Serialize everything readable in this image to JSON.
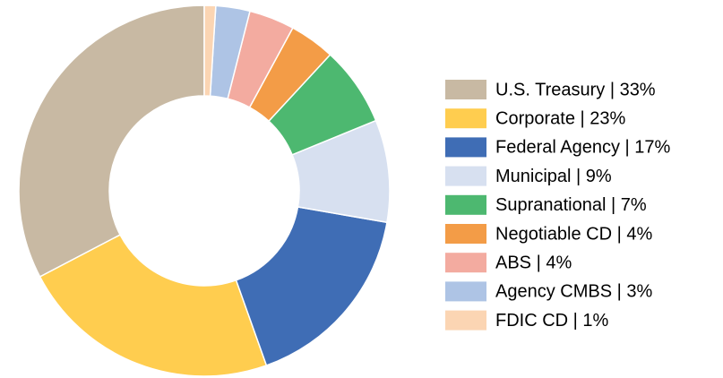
{
  "chart_data": {
    "type": "donut",
    "categories": [
      "U.S. Treasury | 33%",
      "Corporate | 23%",
      "Federal Agency | 17%",
      "Municipal | 9%",
      "Supranational | 7%",
      "Negotiable CD | 4%",
      "ABS | 4%",
      "Agency CMBS | 3%",
      "FDIC CD | 1%"
    ],
    "values": [
      33,
      23,
      17,
      9,
      7,
      4,
      4,
      3,
      1
    ],
    "colors": [
      "#c8b9a3",
      "#ffcd4f",
      "#3f6db5",
      "#d7e0f0",
      "#4db870",
      "#f39c47",
      "#f3aba0",
      "#aec4e5",
      "#fbd5b3"
    ],
    "legend": "right"
  }
}
